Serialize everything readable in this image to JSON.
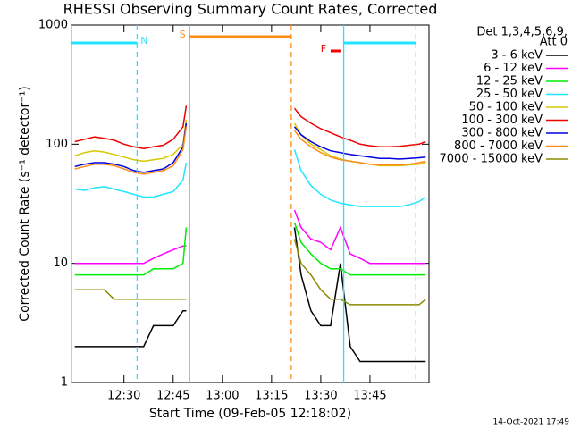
{
  "chart_data": {
    "type": "line",
    "title": "RHESSI Observing Summary Count Rates, Corrected",
    "x_label": "Start Time (09-Feb-05 12:18:02)",
    "y_label": "Corrected Count Rate (s⁻¹ detector⁻¹)",
    "footer": "14-Oct-2021 17:49",
    "legend_title": [
      "Det 1,3,4,5,6,9,",
      "Att 0"
    ],
    "log_y": true,
    "x": [
      "12:15",
      "12:18",
      "12:21",
      "12:24",
      "12:27",
      "12:30",
      "12:33",
      "12:36",
      "12:39",
      "12:42",
      "12:45",
      "12:48",
      "12:49",
      "13:00",
      "13:22",
      "13:24",
      "13:27",
      "13:30",
      "13:33",
      "13:36",
      "13:39",
      "13:42",
      "13:45",
      "13:48",
      "13:51",
      "13:54",
      "13:57",
      "14:00",
      "14:02"
    ],
    "xlim": [
      "12:14",
      "14:03"
    ],
    "xticks": [
      "12:30",
      "12:45",
      "13:00",
      "13:15",
      "13:30",
      "13:45"
    ],
    "ylim": [
      1,
      1000
    ],
    "yticks": [
      1,
      10,
      100,
      1000
    ],
    "series": [
      {
        "name": "3 - 6 keV",
        "color": "#000000",
        "values": [
          2,
          2,
          2,
          2,
          2,
          2,
          2,
          2,
          3,
          3,
          3,
          4,
          4,
          null,
          20,
          8,
          4,
          3,
          3,
          10,
          2,
          1.5,
          1.5,
          1.5,
          1.5,
          1.5,
          1.5,
          1.5,
          1.5
        ]
      },
      {
        "name": "6 - 12 keV",
        "color": "#ff00ff",
        "values": [
          10,
          10,
          10,
          10,
          10,
          10,
          10,
          10,
          11,
          12,
          13,
          14,
          14,
          null,
          28,
          20,
          16,
          15,
          13,
          20,
          12,
          11,
          10,
          10,
          10,
          10,
          10,
          10,
          10
        ]
      },
      {
        "name": "12 - 25 keV",
        "color": "#00ee00",
        "values": [
          8,
          8,
          8,
          8,
          8,
          8,
          8,
          8,
          9,
          9,
          9,
          10,
          20,
          null,
          22,
          15,
          12,
          10,
          9,
          9,
          8,
          8,
          8,
          8,
          8,
          8,
          8,
          8,
          8
        ]
      },
      {
        "name": "25 - 50 keV",
        "color": "#22e6ff",
        "values": [
          42,
          41,
          43,
          44,
          42,
          40,
          38,
          36,
          36,
          38,
          40,
          50,
          70,
          null,
          90,
          60,
          45,
          38,
          34,
          32,
          31,
          30,
          30,
          30,
          30,
          30,
          31,
          33,
          36
        ]
      },
      {
        "name": "50 - 100 keV",
        "color": "#d6c800",
        "values": [
          80,
          85,
          88,
          86,
          82,
          78,
          74,
          72,
          74,
          76,
          82,
          100,
          160,
          null,
          150,
          120,
          100,
          90,
          80,
          75,
          72,
          70,
          68,
          66,
          66,
          66,
          67,
          68,
          70
        ]
      },
      {
        "name": "100 - 300 keV",
        "color": "#ee0000",
        "values": [
          105,
          110,
          115,
          112,
          108,
          100,
          95,
          92,
          95,
          98,
          110,
          140,
          210,
          null,
          200,
          170,
          150,
          135,
          125,
          115,
          108,
          100,
          97,
          95,
          95,
          96,
          98,
          100,
          105
        ]
      },
      {
        "name": "300 - 800 keV",
        "color": "#0000dd",
        "values": [
          65,
          68,
          70,
          70,
          68,
          65,
          60,
          58,
          60,
          62,
          70,
          95,
          150,
          null,
          140,
          120,
          105,
          95,
          88,
          85,
          82,
          80,
          78,
          76,
          76,
          75,
          76,
          77,
          78
        ]
      },
      {
        "name": "800 - 7000 keV",
        "color": "#ff8c1a",
        "values": [
          62,
          65,
          68,
          68,
          66,
          62,
          58,
          56,
          58,
          60,
          66,
          90,
          140,
          null,
          130,
          110,
          95,
          85,
          78,
          74,
          72,
          70,
          68,
          67,
          67,
          67,
          68,
          70,
          72
        ]
      },
      {
        "name": "7000 - 15000 keV",
        "color": "#8b8b00",
        "values": [
          6,
          6,
          6,
          6,
          5,
          5,
          5,
          5,
          5,
          5,
          5,
          5,
          5,
          null,
          16,
          10,
          8,
          6,
          5,
          5,
          4.5,
          4.5,
          4.5,
          4.5,
          4.5,
          4.5,
          4.5,
          4.5,
          5
        ]
      }
    ],
    "flags": [
      {
        "label": "N",
        "color": "#22e6ff",
        "spans": [
          [
            "12:14",
            "12:34"
          ],
          [
            "13:37",
            "13:59"
          ]
        ]
      },
      {
        "label": "S",
        "color": "#ff8c1a",
        "spans": [
          [
            "12:50",
            "13:21"
          ]
        ]
      },
      {
        "label": "F",
        "color": "#ee0000",
        "spans": [
          [
            "13:33",
            "13:36"
          ]
        ]
      }
    ],
    "markers": [
      {
        "x": "12:14",
        "color": "#22e6ff",
        "dashed": false
      },
      {
        "x": "12:34",
        "color": "#22e6ff",
        "dashed": true
      },
      {
        "x": "12:50",
        "color": "#ff8c1a",
        "dashed": false
      },
      {
        "x": "13:21",
        "color": "#ff8c1a",
        "dashed": true
      },
      {
        "x": "13:37",
        "color": "#22e6ff",
        "dashed": false
      },
      {
        "x": "13:59",
        "color": "#22e6ff",
        "dashed": true
      }
    ]
  }
}
